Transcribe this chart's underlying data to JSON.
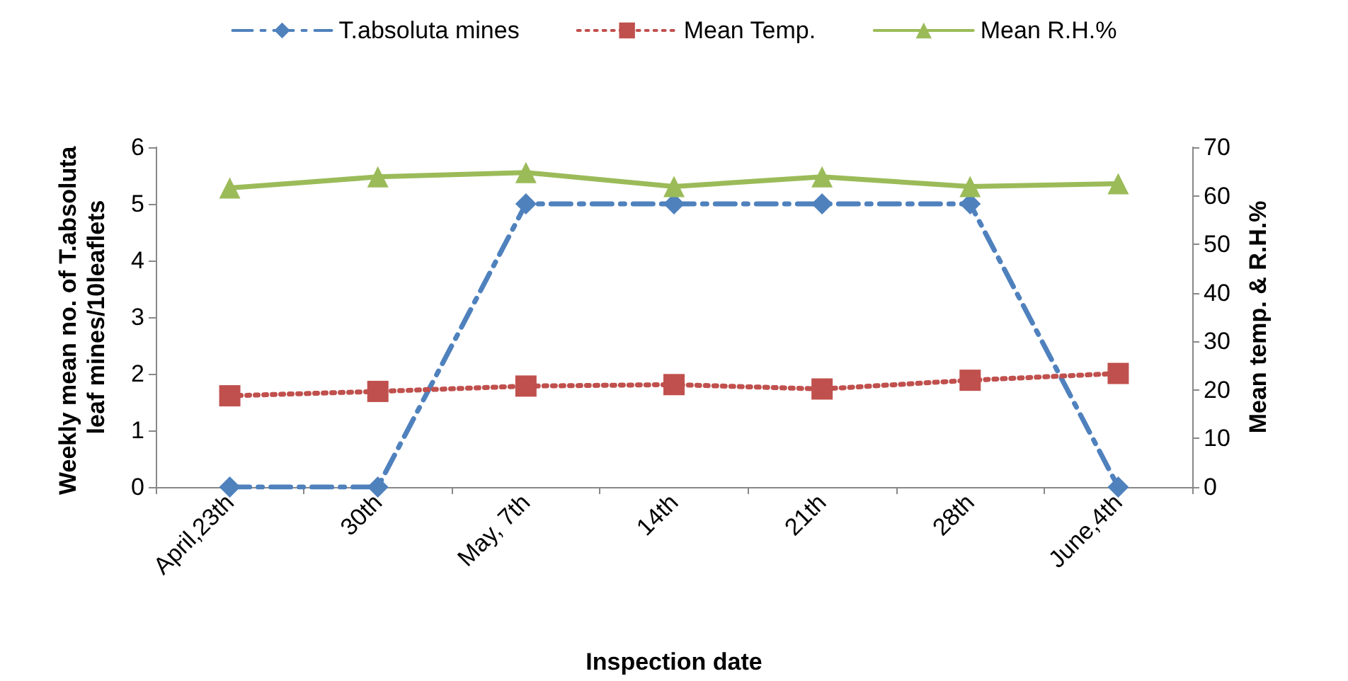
{
  "chart_data": {
    "type": "line",
    "xlabel": "Inspection date",
    "ylabel": "Weekly mean no. of T.absoluta leaf mines/10leaflets",
    "y2label": "Mean temp. & R.H.%",
    "categories": [
      "April,23th",
      "30th",
      "May, 7th",
      "14th",
      "21th",
      "28th",
      "June,4th"
    ],
    "series": [
      {
        "name": "T.absoluta mines",
        "color": "#4f81bd",
        "marker": "diamond",
        "line_style": "dashed",
        "values": [
          0,
          0,
          5,
          5,
          5,
          5,
          0
        ]
      },
      {
        "name": "Mean Temp.",
        "color": "#c0504d",
        "marker": "square",
        "line_style": "dotted",
        "axis": "y2",
        "values": [
          18.8,
          19.7,
          20.8,
          21.1,
          20.2,
          22,
          23.4
        ]
      },
      {
        "name": "Mean R.H.%",
        "color": "#9bbb59",
        "marker": "triangle",
        "line_style": "solid",
        "axis": "y2",
        "values": [
          61.6,
          63.9,
          64.8,
          61.9,
          63.9,
          61.9,
          62.5
        ]
      }
    ],
    "ylim": [
      0,
      6
    ],
    "yticks": [
      0,
      1,
      2,
      3,
      4,
      5,
      6
    ],
    "y2lim": [
      0,
      70
    ],
    "y2ticks": [
      0,
      10,
      20,
      30,
      40,
      50,
      60,
      70
    ],
    "grid": false,
    "legend": "top"
  }
}
